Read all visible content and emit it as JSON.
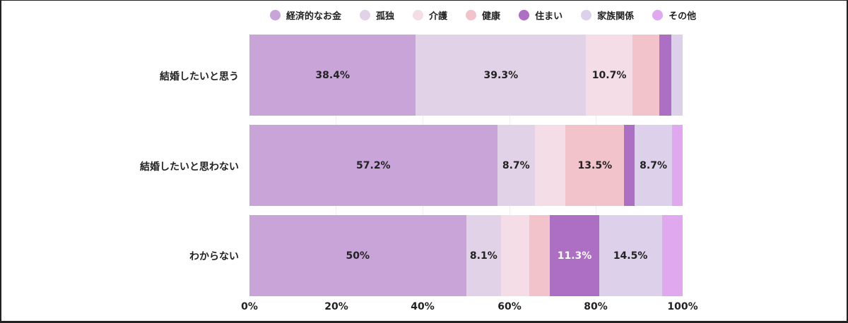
{
  "chart_data": {
    "type": "bar",
    "orientation": "horizontal",
    "stacked": true,
    "normalized": true,
    "title": "",
    "xlabel": "",
    "ylabel": "",
    "xlim": [
      0,
      100
    ],
    "x_ticks": [
      "0%",
      "20%",
      "40%",
      "60%",
      "80%",
      "100%"
    ],
    "grid": true,
    "legend_position": "top",
    "categories": [
      "結婚したいと思う",
      "結婚したいと思わない",
      "わからない"
    ],
    "series": [
      {
        "name": "経済的なお金",
        "color": "#c9a4d9",
        "values": [
          38.4,
          57.2,
          50.0
        ],
        "labels": [
          "38.4%",
          "57.2%",
          "50%"
        ]
      },
      {
        "name": "孤独",
        "color": "#e2d2e8",
        "values": [
          39.3,
          8.7,
          8.1
        ],
        "labels": [
          "39.3%",
          "8.7%",
          "8.1%"
        ]
      },
      {
        "name": "介護",
        "color": "#f5dde7",
        "values": [
          10.7,
          7.1,
          6.5
        ],
        "labels": [
          "10.7%",
          "",
          ""
        ]
      },
      {
        "name": "健康",
        "color": "#f3c3cb",
        "values": [
          6.3,
          13.5,
          4.8
        ],
        "labels": [
          "",
          "13.5%",
          ""
        ]
      },
      {
        "name": "住まい",
        "color": "#ac6fc4",
        "values": [
          2.7,
          2.4,
          11.3
        ],
        "labels": [
          "",
          "",
          "11.3%"
        ]
      },
      {
        "name": "家族関係",
        "color": "#dcd0ea",
        "values": [
          2.6,
          8.7,
          14.5
        ],
        "labels": [
          "",
          "8.7%",
          "14.5%"
        ]
      },
      {
        "name": "その他",
        "color": "#e0a8ee",
        "values": [
          0.0,
          2.4,
          4.8
        ],
        "labels": [
          "",
          "",
          ""
        ]
      }
    ]
  },
  "legend": [
    {
      "label": "経済的なお金",
      "color": "#c9a4d9"
    },
    {
      "label": "孤独",
      "color": "#e2d2e8"
    },
    {
      "label": "介護",
      "color": "#f5dde7"
    },
    {
      "label": "健康",
      "color": "#f3c3cb"
    },
    {
      "label": "住まい",
      "color": "#ac6fc4"
    },
    {
      "label": "家族関係",
      "color": "#dcd0ea"
    },
    {
      "label": "その他",
      "color": "#e0a8ee"
    }
  ],
  "axis": {
    "y_labels": [
      "結婚したいと思う",
      "結婚したいと思わない",
      "わからない"
    ],
    "x_ticks": [
      "0%",
      "20%",
      "40%",
      "60%",
      "80%",
      "100%"
    ]
  }
}
